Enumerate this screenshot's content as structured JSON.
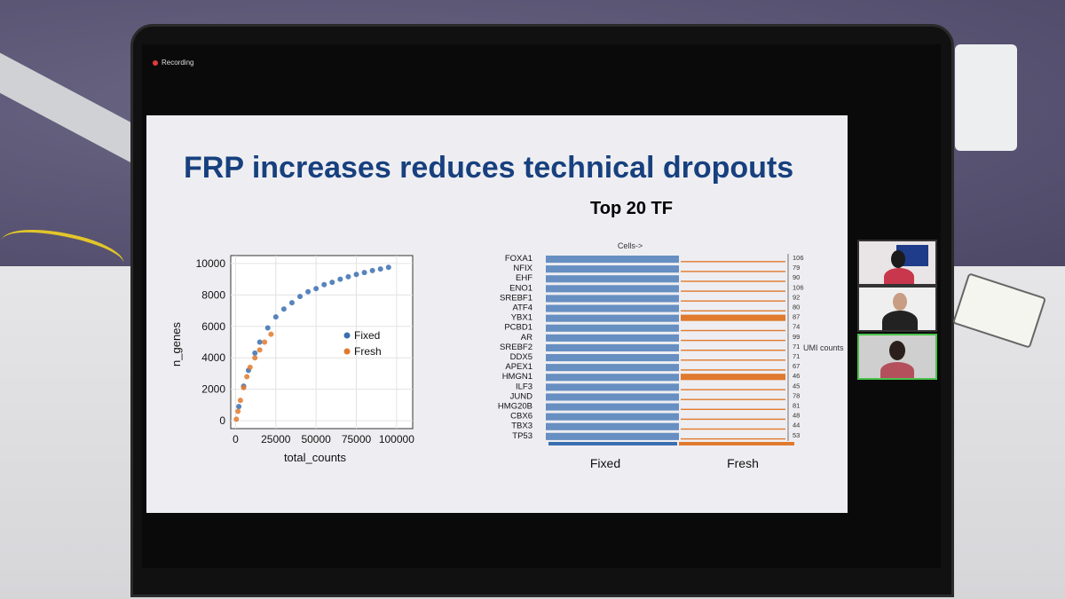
{
  "recording": {
    "label": "Recording",
    "dot_color": "#e43b3b"
  },
  "slide": {
    "title": "FRP increases reduces technical dropouts",
    "subtitle": "Top 20 TF",
    "title_color": "#17407e"
  },
  "chart_data": [
    {
      "type": "scatter",
      "xlabel": "total_counts",
      "ylabel": "n_genes",
      "x_ticks": [
        "0",
        "25000",
        "50000",
        "75000",
        "100000"
      ],
      "y_ticks": [
        "0",
        "2000",
        "4000",
        "6000",
        "8000",
        "10000"
      ],
      "xlim": [
        -3000,
        110000
      ],
      "ylim": [
        -500,
        10500
      ],
      "legend": [
        "Fixed",
        "Fresh"
      ],
      "legend_position": "right-center",
      "series": [
        {
          "name": "Fixed",
          "color": "#3a6fb0",
          "x": [
            2000,
            5000,
            8000,
            12000,
            15000,
            20000,
            25000,
            30000,
            35000,
            40000,
            45000,
            50000,
            55000,
            60000,
            65000,
            70000,
            75000,
            80000,
            85000,
            90000,
            95000
          ],
          "y": [
            900,
            2200,
            3200,
            4300,
            5000,
            5900,
            6600,
            7100,
            7500,
            7900,
            8200,
            8400,
            8650,
            8800,
            9000,
            9150,
            9300,
            9420,
            9550,
            9650,
            9750
          ]
        },
        {
          "name": "Fresh",
          "color": "#e07a2e",
          "x": [
            500,
            1500,
            3000,
            5000,
            7000,
            9000,
            12000,
            15000,
            18000,
            22000
          ],
          "y": [
            100,
            600,
            1300,
            2100,
            2800,
            3400,
            4000,
            4500,
            5000,
            5500
          ]
        }
      ]
    },
    {
      "type": "heatmap",
      "top_label": "Cells->",
      "right_axis_label": "UMI counts",
      "rows": [
        "FOXA1",
        "NFIX",
        "EHF",
        "ENO1",
        "SREBF1",
        "ATF4",
        "YBX1",
        "PCBD1",
        "AR",
        "SREBF2",
        "DDX5",
        "APEX1",
        "HMGN1",
        "ILF3",
        "JUND",
        "HMG20B",
        "CBX6",
        "TBX3",
        "TP53"
      ],
      "umi_counts": [
        "106",
        "79",
        "90",
        "106",
        "92",
        "80",
        "87",
        "74",
        "99",
        "71",
        "71",
        "67",
        "46",
        "45",
        "78",
        "81",
        "48",
        "44",
        "53"
      ],
      "groups": [
        {
          "name": "Fixed",
          "color": "#3a6fb0"
        },
        {
          "name": "Fresh",
          "color": "#e07a2e"
        }
      ]
    }
  ],
  "participants": [
    {
      "role": "participant-1"
    },
    {
      "role": "participant-2"
    },
    {
      "role": "participant-3",
      "active": true
    }
  ]
}
